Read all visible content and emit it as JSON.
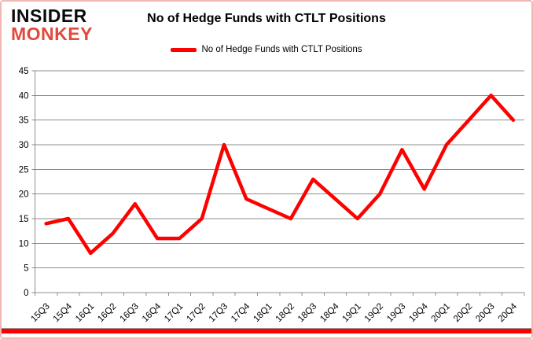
{
  "logo": {
    "line1": "INSIDER",
    "line2": "MONKEY"
  },
  "title": "No of Hedge Funds with CTLT Positions",
  "legend": {
    "label": "No of Hedge Funds with CTLT Positions"
  },
  "colors": {
    "line": "#fe0000",
    "grid": "#8c8c8c",
    "axis": "#8c8c8c",
    "text": "#000000",
    "logo_monkey": "#e2483c",
    "frame_border": "#f2b7b0",
    "bottom_bar": "#fe0000"
  },
  "chart_data": {
    "type": "line",
    "title": "No of Hedge Funds with CTLT Positions",
    "categories": [
      "15Q3",
      "15Q4",
      "16Q1",
      "16Q2",
      "16Q3",
      "16Q4",
      "17Q1",
      "17Q2",
      "17Q3",
      "17Q4",
      "18Q1",
      "18Q2",
      "18Q3",
      "18Q4",
      "19Q1",
      "19Q2",
      "19Q3",
      "19Q4",
      "20Q1",
      "20Q2",
      "20Q3",
      "20Q4"
    ],
    "series": [
      {
        "name": "No of Hedge Funds with CTLT Positions",
        "color": "#fe0000",
        "values": [
          14,
          15,
          8,
          12,
          18,
          11,
          11,
          15,
          30,
          19,
          17,
          15,
          23,
          19,
          15,
          20,
          29,
          21,
          30,
          35,
          40,
          35
        ]
      }
    ],
    "xlabel": "",
    "ylabel": "",
    "ylim": [
      0,
      45
    ],
    "ytick_interval": 5,
    "yticks": [
      0,
      5,
      10,
      15,
      20,
      25,
      30,
      35,
      40,
      45
    ],
    "grid": true,
    "legend_position": "top-center"
  }
}
